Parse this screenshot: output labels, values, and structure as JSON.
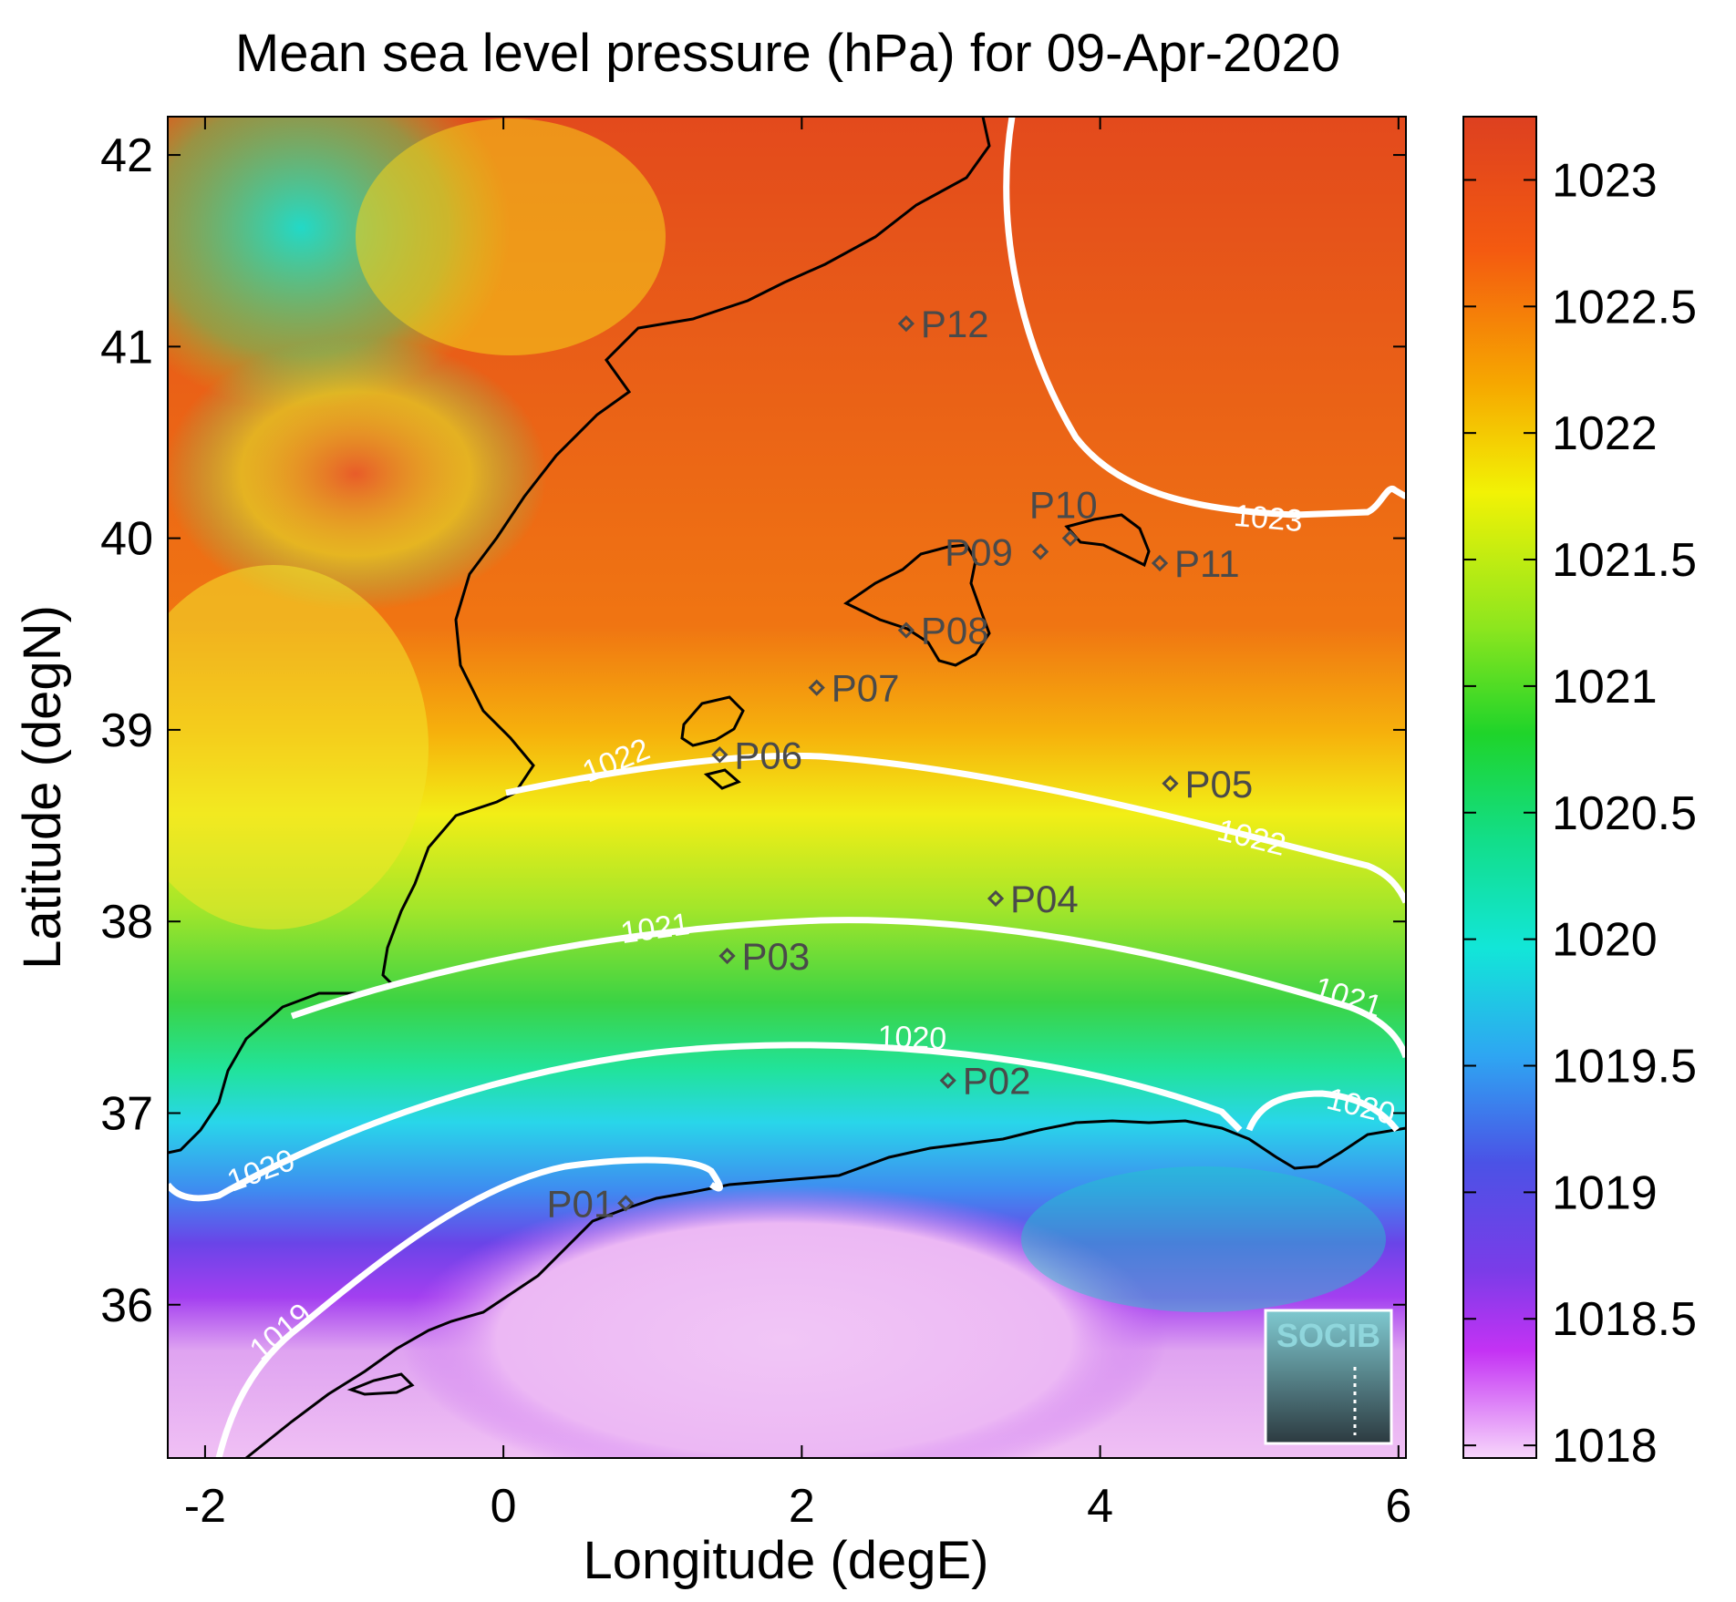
{
  "title": "Mean sea level pressure (hPa) for 09-Apr-2020",
  "xlabel": "Longitude (degE)",
  "ylabel": "Latitude (degN)",
  "xticks": [
    "-2",
    "0",
    "2",
    "4",
    "6"
  ],
  "yticks": [
    "42",
    "41",
    "40",
    "39",
    "38",
    "37",
    "36"
  ],
  "colorbar": {
    "ticks": [
      "1023",
      "1022.5",
      "1022",
      "1021.5",
      "1021",
      "1020.5",
      "1020",
      "1019.5",
      "1019",
      "1018.5",
      "1018"
    ]
  },
  "logo": "SOCIB",
  "stations": [
    {
      "name": "P01",
      "lon": 0.82,
      "lat": 36.53
    },
    {
      "name": "P02",
      "lon": 2.98,
      "lat": 37.17
    },
    {
      "name": "P03",
      "lon": 1.5,
      "lat": 37.82
    },
    {
      "name": "P04",
      "lon": 3.3,
      "lat": 38.12
    },
    {
      "name": "P05",
      "lon": 4.47,
      "lat": 38.72
    },
    {
      "name": "P06",
      "lon": 1.45,
      "lat": 38.87
    },
    {
      "name": "P07",
      "lon": 2.1,
      "lat": 39.22
    },
    {
      "name": "P08",
      "lon": 2.7,
      "lat": 39.52
    },
    {
      "name": "P09",
      "lon": 3.6,
      "lat": 39.93
    },
    {
      "name": "P10",
      "lon": 3.8,
      "lat": 40.0
    },
    {
      "name": "P11",
      "lon": 4.4,
      "lat": 39.87
    },
    {
      "name": "P12",
      "lon": 2.7,
      "lat": 41.12
    }
  ],
  "contour_labels": [
    "1023",
    "1022",
    "1022",
    "1021",
    "1021",
    "1020",
    "1020",
    "1020",
    "1019"
  ],
  "chart_data": {
    "type": "heatmap",
    "title": "Mean sea level pressure (hPa) for 09-Apr-2020",
    "xlabel": "Longitude (degE)",
    "ylabel": "Latitude (degN)",
    "xlim": [
      -2.25,
      6.05
    ],
    "ylim": [
      35.2,
      42.2
    ],
    "zlim": [
      1017.95,
      1023.25
    ],
    "zunit": "hPa",
    "colorbar_ticks": [
      1018,
      1018.5,
      1019,
      1019.5,
      1020,
      1020.5,
      1021,
      1021.5,
      1022,
      1022.5,
      1023
    ],
    "contour_levels": [
      1019,
      1020,
      1021,
      1022,
      1023
    ]
  }
}
